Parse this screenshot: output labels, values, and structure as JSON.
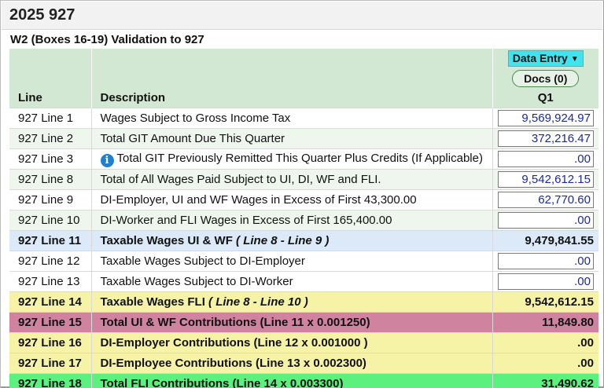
{
  "page": {
    "title": "2025 927",
    "subtitle": "W2 (Boxes 16-19) Validation to 927"
  },
  "header": {
    "line": "Line",
    "description": "Description",
    "mode_select": "Data Entry",
    "docs_button": "Docs (0)",
    "quarter": "Q1"
  },
  "rows": [
    {
      "line": "927 Line 1",
      "desc": "Wages Subject to Gross Income Tax",
      "value": "9,569,924.97"
    },
    {
      "line": "927 Line 2",
      "desc": "Total GIT Amount Due This Quarter",
      "value": "372,216.47"
    },
    {
      "line": "927 Line 3",
      "desc": "Total GIT Previously Remitted This Quarter Plus Credits (If Applicable)",
      "value": ".00"
    },
    {
      "line": "927 Line 8",
      "desc": "Total of All Wages Paid Subject to UI, DI, WF and FLI.",
      "value": "9,542,612.15"
    },
    {
      "line": "927 Line 9",
      "desc": "DI-Employer, UI and WF Wages in Excess of First 43,300.00",
      "value": "62,770.60"
    },
    {
      "line": "927 Line 10",
      "desc": "DI-Worker and FLI Wages in Excess of First 165,400.00",
      "value": ".00"
    },
    {
      "line": "927 Line 11",
      "desc": "Taxable Wages UI & WF",
      "formula": "( Line 8 - Line 9 )",
      "value": "9,479,841.55"
    },
    {
      "line": "927 Line 12",
      "desc": "Taxable Wages Subject to DI-Employer",
      "value": ".00"
    },
    {
      "line": "927 Line 13",
      "desc": "Taxable Wages Subject to DI-Worker",
      "value": ".00"
    },
    {
      "line": "927 Line 14",
      "desc": "Taxable Wages FLI",
      "formula": "( Line 8 - Line 10 )",
      "value": "9,542,612.15"
    },
    {
      "line": "927 Line 15",
      "desc": "Total UI & WF Contributions (Line 11 x 0.001250)",
      "value": "11,849.80"
    },
    {
      "line": "927 Line 16",
      "desc": "DI-Employer Contributions (Line 12 x 0.001000 )",
      "value": ".00"
    },
    {
      "line": "927 Line 17",
      "desc": "DI-Employee Contributions (Line 13 x 0.002300)",
      "value": ".00"
    },
    {
      "line": "927 Line 18",
      "desc": "Total FLI Contributions (Line 14 x 0.003300)",
      "value": "31,490.62"
    }
  ],
  "icons": {
    "info": "info-circle-icon",
    "dropdown": "chevron-down-icon"
  },
  "colors": {
    "header_bg": "#d3e8d3",
    "alt_row": "#eef6ee",
    "computed_blue": "#dbe9f8",
    "computed_yellow": "#f6f3a6",
    "total_pink": "#cf839f",
    "total_green": "#5cf07e",
    "select_bg": "#3fe4ee",
    "input_text": "#1a2a9a"
  }
}
